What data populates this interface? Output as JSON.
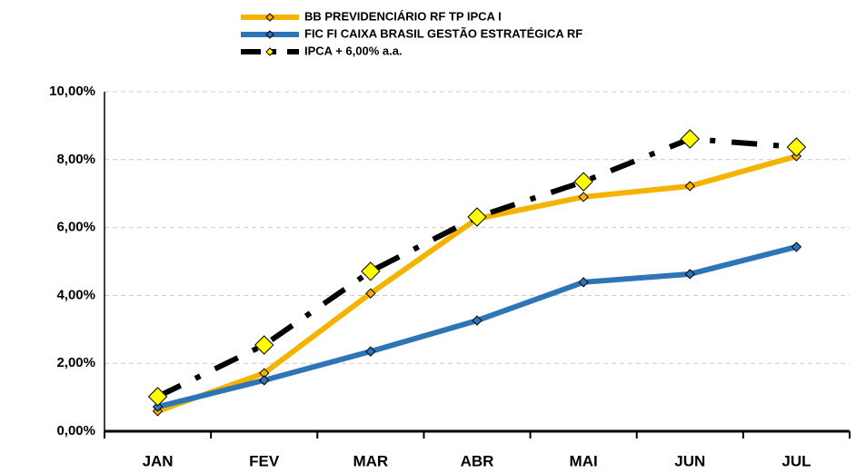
{
  "chart_data": {
    "type": "line",
    "categories": [
      "JAN",
      "FEV",
      "MAR",
      "ABR",
      "MAI",
      "JUN",
      "JUL"
    ],
    "series": [
      {
        "name": "BB PREVIDENCIÁRIO RF TP IPCA I",
        "color": "#f5b301",
        "marker_color": "#f5b301",
        "values": [
          0.59,
          1.71,
          4.06,
          6.26,
          6.9,
          7.22,
          8.1
        ]
      },
      {
        "name": "FIC FI CAIXA BRASIL GESTÃO ESTRATÉGICA RF",
        "color": "#2e75b6",
        "marker_color": "#2e75b6",
        "values": [
          0.72,
          1.5,
          2.35,
          3.26,
          4.39,
          4.63,
          5.43
        ]
      },
      {
        "name": "IPCA + 6,00% a.a.",
        "color": "#000000",
        "marker_color": "#ffff00",
        "dash": true,
        "values": [
          1.02,
          2.54,
          4.71,
          6.31,
          7.35,
          8.61,
          8.37
        ]
      }
    ],
    "ylim": [
      0,
      10
    ],
    "yticks": [
      {
        "value": 0,
        "label": "0,00%"
      },
      {
        "value": 2,
        "label": "2,00%"
      },
      {
        "value": 4,
        "label": "4,00%"
      },
      {
        "value": 6,
        "label": "6,00%"
      },
      {
        "value": 8,
        "label": "8,00%"
      },
      {
        "value": 10,
        "label": "10,00%"
      }
    ],
    "grid": true,
    "legend": "top"
  }
}
